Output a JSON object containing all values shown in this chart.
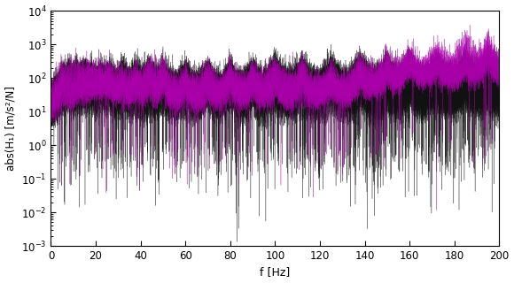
{
  "title": "",
  "xlabel": "f [Hz]",
  "ylabel": "abs(H₁) [m/s²/N]",
  "xlim": [
    0,
    200
  ],
  "ylim_log": [
    -3,
    4
  ],
  "xticks": [
    0,
    20,
    40,
    60,
    80,
    100,
    120,
    140,
    160,
    180,
    200
  ],
  "background_color": "#ffffff",
  "line_color_black": "#111111",
  "line_color_magenta": "#aa00aa",
  "line_alpha_black": 0.55,
  "line_alpha_magenta": 0.55,
  "line_width": 0.35,
  "n_black_lines": 50,
  "n_magenta_lines": 8,
  "n_points": 8000,
  "seed": 42,
  "figsize": [
    5.8,
    3.2
  ],
  "dpi": 100
}
